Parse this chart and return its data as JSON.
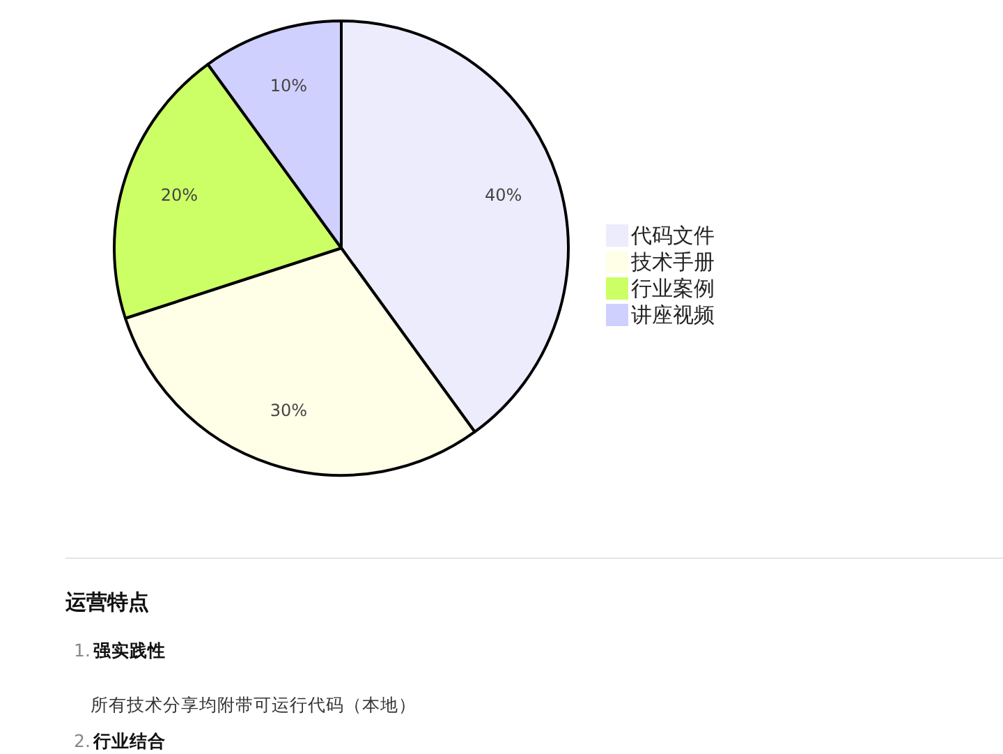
{
  "chart_data": {
    "type": "pie",
    "categories": [
      "代码文件",
      "技术手册",
      "行业案例",
      "讲座视频"
    ],
    "values": [
      40,
      30,
      20,
      10
    ],
    "colors": [
      "#ececfc",
      "#ffffe8",
      "#ccff66",
      "#d0d0ff"
    ],
    "value_labels": [
      "40%",
      "30%",
      "20%",
      "10%"
    ],
    "legend": "right",
    "annotations": [
      "运营特点",
      "1. 强实践性",
      "所有技术分享均附带可运行代码（本地）",
      "2. 行业结合"
    ]
  }
}
